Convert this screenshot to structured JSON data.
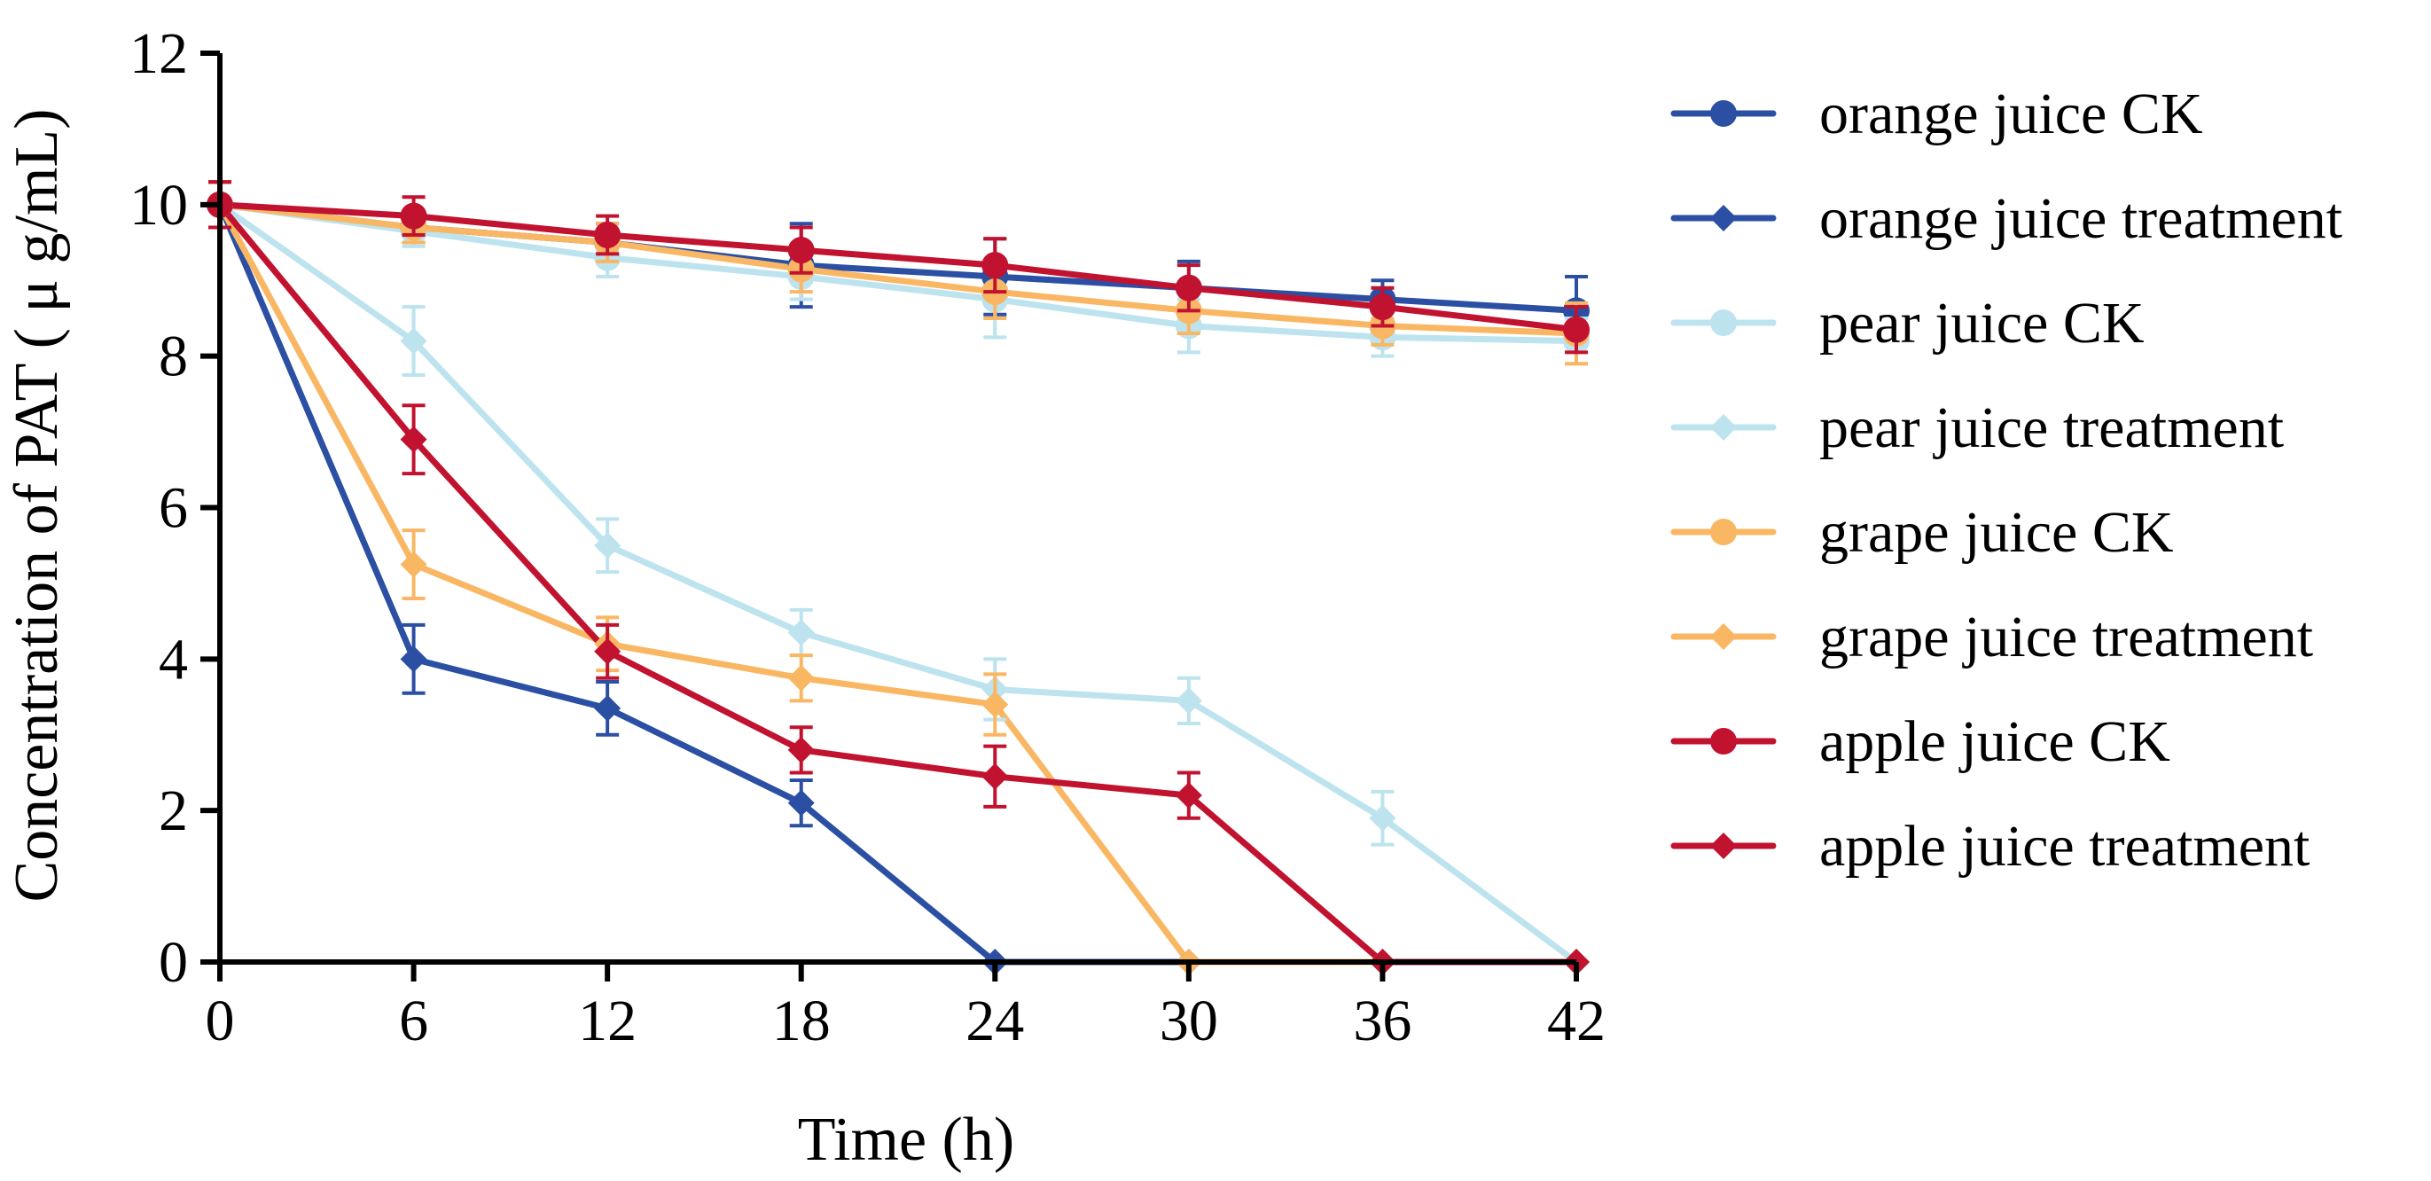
{
  "chart_data": {
    "type": "line",
    "xlabel": "Time (h)",
    "ylabel": "Concentration of PAT ( μ g/mL)",
    "xlim": [
      0,
      42
    ],
    "ylim": [
      0,
      12
    ],
    "xticks": [
      0,
      6,
      12,
      18,
      24,
      30,
      36,
      42
    ],
    "yticks": [
      0,
      2,
      4,
      6,
      8,
      10,
      12
    ],
    "x": [
      0,
      6,
      12,
      18,
      24,
      30,
      36,
      42
    ],
    "grid": false,
    "legend_position": "right",
    "series": [
      {
        "name": "orange juice CK",
        "color": "#2b4fa3",
        "marker": "circle",
        "values": [
          10.0,
          9.7,
          9.5,
          9.2,
          9.05,
          8.9,
          8.75,
          8.6
        ],
        "errors": [
          0.3,
          0.2,
          0.25,
          0.55,
          0.5,
          0.35,
          0.25,
          0.45
        ]
      },
      {
        "name": "orange juice treatment",
        "color": "#2b4fa3",
        "marker": "diamond",
        "values": [
          10.0,
          4.0,
          3.35,
          2.1,
          0.0,
          0.0,
          0.0,
          0.0
        ],
        "errors": [
          0.3,
          0.45,
          0.35,
          0.3,
          0,
          0,
          0,
          0
        ]
      },
      {
        "name": "pear juice CK",
        "color": "#bde3ee",
        "marker": "circle",
        "values": [
          10.0,
          9.65,
          9.3,
          9.05,
          8.75,
          8.4,
          8.25,
          8.2
        ],
        "errors": [
          0.3,
          0.2,
          0.25,
          0.3,
          0.5,
          0.35,
          0.25,
          0.3
        ]
      },
      {
        "name": "pear juice treatment",
        "color": "#bde3ee",
        "marker": "diamond",
        "values": [
          10.0,
          8.2,
          5.5,
          4.35,
          3.6,
          3.45,
          1.9,
          0.0
        ],
        "errors": [
          0.3,
          0.45,
          0.35,
          0.3,
          0.4,
          0.3,
          0.35,
          0
        ]
      },
      {
        "name": "grape juice CK",
        "color": "#f9b764",
        "marker": "circle",
        "values": [
          10.0,
          9.7,
          9.5,
          9.15,
          8.85,
          8.6,
          8.4,
          8.3
        ],
        "errors": [
          0.3,
          0.2,
          0.25,
          0.3,
          0.35,
          0.3,
          0.25,
          0.4
        ]
      },
      {
        "name": "grape juice treatment",
        "color": "#f9b764",
        "marker": "diamond",
        "values": [
          10.0,
          5.25,
          4.2,
          3.75,
          3.4,
          0.0,
          0.0,
          0.0
        ],
        "errors": [
          0.3,
          0.45,
          0.35,
          0.3,
          0.4,
          0,
          0,
          0
        ]
      },
      {
        "name": "apple juice CK",
        "color": "#c1122f",
        "marker": "circle",
        "values": [
          10.0,
          9.85,
          9.6,
          9.4,
          9.2,
          8.9,
          8.65,
          8.35
        ],
        "errors": [
          0.3,
          0.25,
          0.25,
          0.3,
          0.35,
          0.3,
          0.25,
          0.3
        ]
      },
      {
        "name": "apple juice treatment",
        "color": "#c1122f",
        "marker": "diamond",
        "values": [
          10.0,
          6.9,
          4.1,
          2.8,
          2.45,
          2.2,
          0.0,
          0.0
        ],
        "errors": [
          0.3,
          0.45,
          0.35,
          0.3,
          0.4,
          0.3,
          0,
          0
        ]
      }
    ]
  }
}
